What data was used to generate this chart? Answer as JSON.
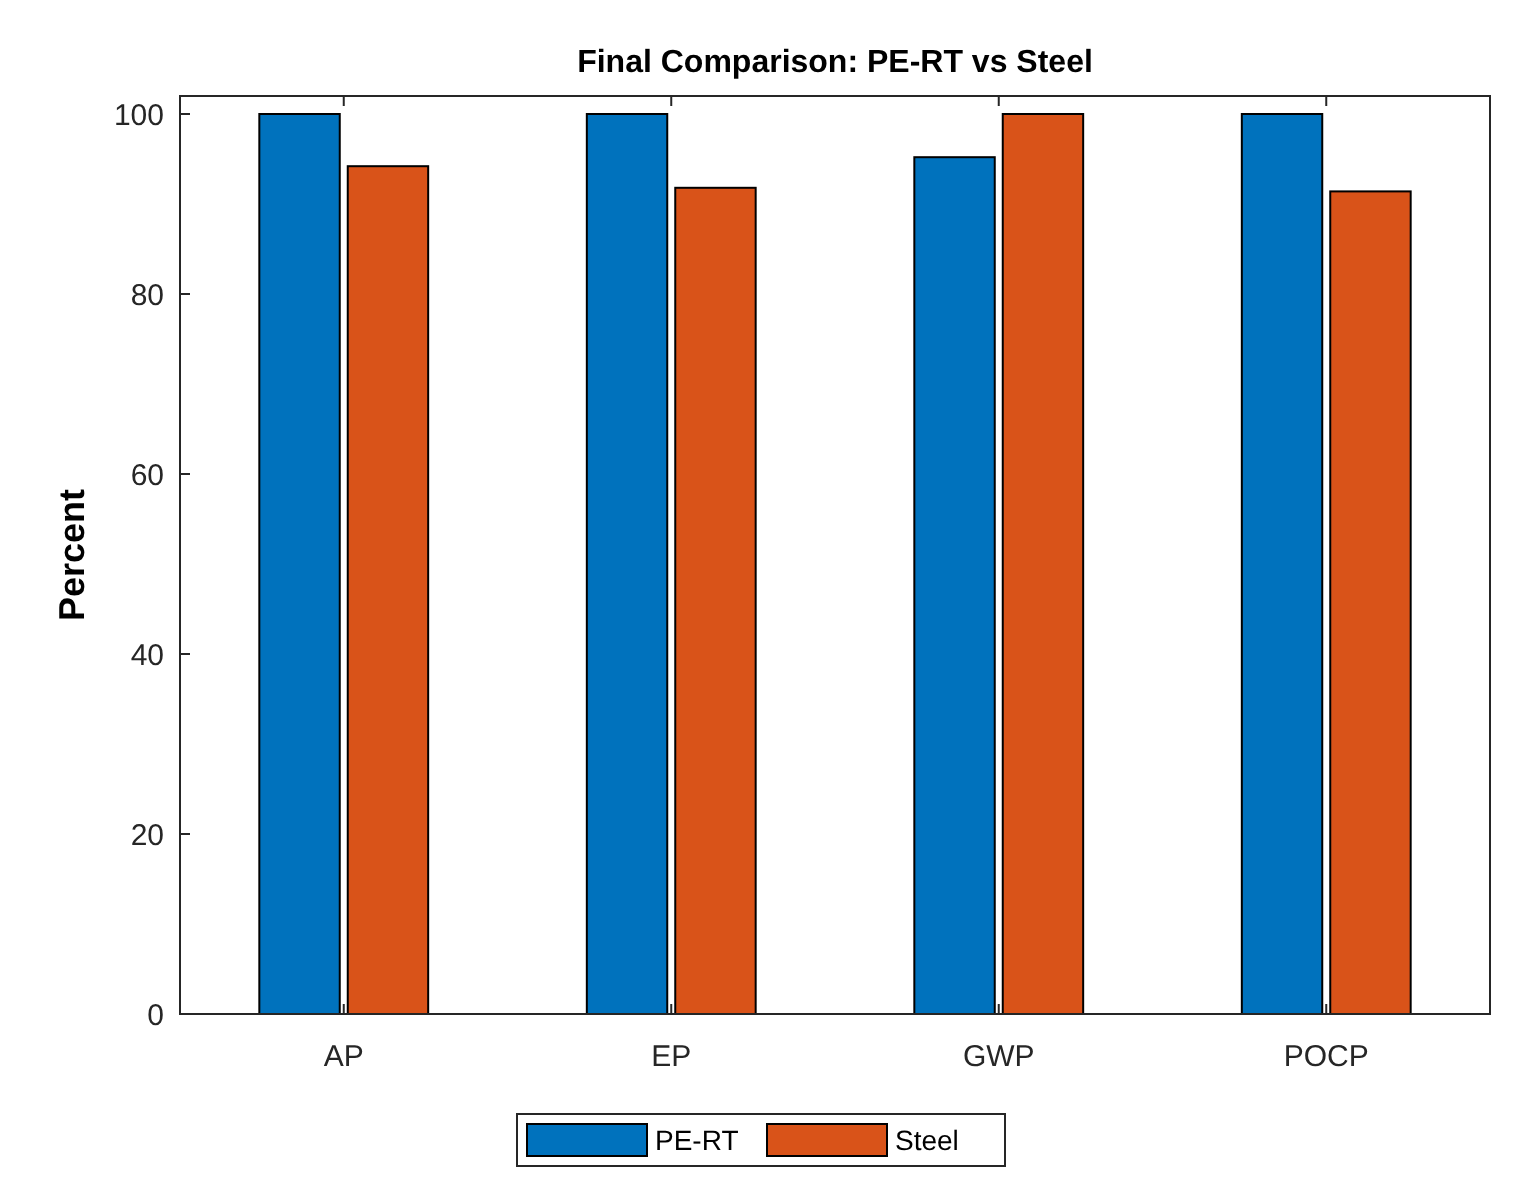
{
  "chart_data": {
    "type": "bar",
    "title": "Final Comparison: PE-RT vs Steel",
    "ylabel": "Percent",
    "categories": [
      "AP",
      "EP",
      "GWP",
      "POCP"
    ],
    "series": [
      {
        "name": "PE-RT",
        "color": "#0072bd",
        "values": [
          100,
          100,
          95.2,
          100
        ]
      },
      {
        "name": "Steel",
        "color": "#d95319",
        "values": [
          94.2,
          91.8,
          100,
          91.4
        ]
      }
    ],
    "ylim": [
      0,
      102
    ],
    "yticks": [
      0,
      20,
      40,
      60,
      80,
      100
    ],
    "legend": "bottom",
    "grid": false
  }
}
